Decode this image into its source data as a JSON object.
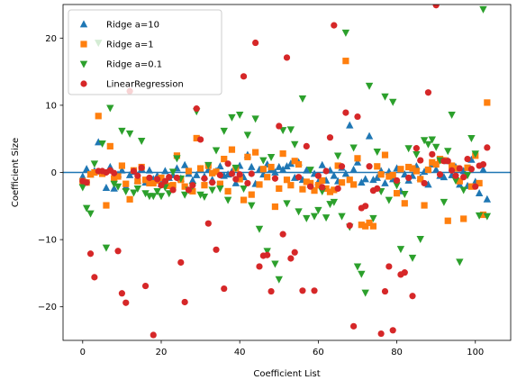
{
  "chart_data": {
    "type": "scatter",
    "title": "",
    "xlabel": "Coefficient List",
    "ylabel": "Coefficient Size",
    "xlim": [
      -5,
      109
    ],
    "ylim": [
      -25,
      25
    ],
    "xticks": [
      0,
      20,
      40,
      60,
      80,
      100
    ],
    "yticks": [
      -20,
      -10,
      0,
      10,
      20
    ],
    "hline": 0,
    "grid": false,
    "legend_position": "upper-left",
    "series": [
      {
        "name": "Ridge a=10",
        "marker": "triangle-up",
        "color": "#1f77b4",
        "x": [
          0,
          1,
          2,
          3,
          4,
          5,
          6,
          7,
          8,
          9,
          10,
          11,
          12,
          13,
          14,
          15,
          16,
          17,
          18,
          19,
          20,
          21,
          22,
          23,
          24,
          25,
          26,
          27,
          28,
          29,
          30,
          31,
          32,
          33,
          34,
          35,
          36,
          37,
          38,
          39,
          40,
          41,
          42,
          43,
          44,
          45,
          46,
          47,
          48,
          49,
          50,
          51,
          52,
          53,
          54,
          55,
          56,
          57,
          58,
          59,
          60,
          61,
          62,
          63,
          64,
          65,
          66,
          67,
          68,
          69,
          70,
          71,
          72,
          73,
          74,
          75,
          76,
          77,
          78,
          79,
          80,
          81,
          82,
          83,
          84,
          85,
          86,
          87,
          88,
          89,
          90,
          91,
          92,
          93,
          94,
          95,
          96,
          97,
          98,
          99,
          100,
          101,
          102,
          103
        ],
        "y": [
          -0.6,
          0.5,
          -0.3,
          0.2,
          4.5,
          0.1,
          -2.3,
          0.8,
          -2.4,
          -0.3,
          0.3,
          -2.1,
          -0.4,
          0.1,
          -1.2,
          0.5,
          -1.5,
          0.3,
          -1.0,
          -0.5,
          -1.7,
          0.2,
          -0.8,
          -0.4,
          0.6,
          -0.9,
          1.1,
          -0.2,
          -1.2,
          -0.4,
          0.5,
          -0.6,
          0.4,
          -1.1,
          0.2,
          0.9,
          -0.5,
          -0.3,
          0.1,
          -1.6,
          1.0,
          -0.7,
          2.6,
          0.8,
          -1.7,
          0.4,
          -0.3,
          1.2,
          0.5,
          0.0,
          0.8,
          0.4,
          0.9,
          1.3,
          -0.8,
          1.5,
          -1.1,
          0.3,
          -1.8,
          -0.2,
          -1.4,
          1.1,
          -1.2,
          0.3,
          -0.5,
          -1.3,
          0.7,
          -0.2,
          7.0,
          0.4,
          1.5,
          -1.5,
          -1.0,
          5.4,
          -1.1,
          -0.8,
          0.2,
          -1.6,
          0.1,
          -1.0,
          0.6,
          -2.8,
          -0.3,
          -1.2,
          -0.5,
          0.9,
          -0.8,
          0.1,
          -1.8,
          1.2,
          0.4,
          -0.5,
          -0.7,
          1.7,
          -0.4,
          0.8,
          -1.8,
          0.2,
          -2.0,
          1.9,
          -1.4,
          -3.1,
          0.4,
          -4.0
        ]
      },
      {
        "name": "Ridge a=1",
        "marker": "square",
        "color": "#ff7f0e",
        "x": [
          0,
          1,
          2,
          3,
          4,
          5,
          6,
          7,
          8,
          9,
          10,
          11,
          12,
          13,
          14,
          15,
          16,
          17,
          18,
          19,
          20,
          21,
          22,
          23,
          24,
          25,
          26,
          27,
          28,
          29,
          30,
          31,
          32,
          33,
          34,
          35,
          36,
          37,
          38,
          39,
          40,
          41,
          42,
          43,
          44,
          45,
          46,
          47,
          48,
          49,
          50,
          51,
          52,
          53,
          54,
          55,
          56,
          57,
          58,
          59,
          60,
          61,
          62,
          63,
          64,
          65,
          66,
          67,
          68,
          69,
          70,
          71,
          72,
          73,
          74,
          75,
          76,
          77,
          78,
          79,
          80,
          81,
          82,
          83,
          84,
          85,
          86,
          87,
          88,
          89,
          90,
          91,
          92,
          93,
          94,
          95,
          96,
          97,
          98,
          99,
          100,
          101,
          102,
          103
        ],
        "y": [
          -1.3,
          -1.5,
          -0.3,
          0.0,
          8.4,
          -0.2,
          -4.9,
          3.9,
          -0.9,
          -0.6,
          1.0,
          -1.7,
          -4.0,
          0.3,
          -1.3,
          0.8,
          -1.1,
          -1.6,
          -1.6,
          -1.2,
          -0.8,
          -1.4,
          -2.0,
          -1.9,
          2.5,
          -1.1,
          -2.1,
          0.2,
          -2.8,
          5.1,
          0.6,
          -1.9,
          1.0,
          -0.1,
          0.1,
          -1.7,
          2.0,
          -2.8,
          3.4,
          0.6,
          -1.0,
          -4.1,
          2.3,
          -3.3,
          3.0,
          -1.8,
          0.5,
          -0.7,
          0.8,
          -5.1,
          -2.4,
          2.8,
          -1.1,
          -1.9,
          1.7,
          1.2,
          -2.5,
          -1.4,
          -1.6,
          -2.7,
          -1.9,
          -1.2,
          -2.4,
          -2.9,
          -2.6,
          1.0,
          -1.5,
          16.6,
          -1.1,
          -1.8,
          2.1,
          -7.8,
          -8.0,
          -7.5,
          -8.0,
          0.9,
          -0.3,
          2.6,
          -0.6,
          -0.4,
          -3.1,
          0.5,
          -4.6,
          0.8,
          0.6,
          0.2,
          -1.0,
          -4.9,
          0.4,
          1.5,
          1.2,
          2.0,
          1.8,
          -7.2,
          1.0,
          0.6,
          -1.3,
          -6.9,
          0.7,
          -2.1,
          2.5,
          -1.6,
          -6.3,
          10.4
        ]
      },
      {
        "name": "Ridge a=0.1",
        "marker": "triangle-down",
        "color": "#2ca02c",
        "x": [
          0,
          1,
          2,
          3,
          4,
          5,
          6,
          7,
          8,
          9,
          10,
          11,
          12,
          13,
          14,
          15,
          16,
          17,
          18,
          19,
          20,
          21,
          22,
          23,
          24,
          25,
          26,
          27,
          28,
          29,
          30,
          31,
          32,
          33,
          34,
          35,
          36,
          37,
          38,
          39,
          40,
          41,
          42,
          43,
          44,
          45,
          46,
          47,
          48,
          49,
          50,
          51,
          52,
          53,
          54,
          55,
          56,
          57,
          58,
          59,
          60,
          61,
          62,
          63,
          64,
          65,
          66,
          67,
          68,
          69,
          70,
          71,
          72,
          73,
          74,
          75,
          76,
          77,
          78,
          79,
          80,
          81,
          82,
          83,
          84,
          85,
          86,
          87,
          88,
          89,
          90,
          91,
          92,
          93,
          94,
          95,
          96,
          97,
          98,
          99,
          100,
          101,
          102,
          103
        ],
        "y": [
          -2.2,
          -5.3,
          -6.1,
          1.3,
          19.3,
          4.3,
          -11.2,
          9.6,
          -1.7,
          -2.1,
          6.2,
          -2.8,
          5.8,
          -3.0,
          -2.4,
          4.7,
          -3.1,
          -3.5,
          -3.5,
          -2.8,
          -3.5,
          -2.2,
          -3.1,
          0.1,
          2.1,
          -0.9,
          -3.3,
          -2.6,
          -2.0,
          9.1,
          -3.3,
          -3.6,
          1.1,
          -2.6,
          3.3,
          -2.4,
          6.2,
          -4.1,
          8.2,
          0.7,
          8.6,
          -2.4,
          5.6,
          -4.9,
          8.0,
          -8.4,
          1.8,
          -11.7,
          2.3,
          -13.6,
          -15.9,
          6.3,
          -4.6,
          6.4,
          4.2,
          -5.8,
          11.0,
          -6.8,
          0.4,
          -6.5,
          -5.6,
          -2.8,
          -6.7,
          -4.7,
          -4.4,
          2.5,
          -6.5,
          20.8,
          -8.1,
          3.7,
          -14.0,
          -15.1,
          -17.9,
          12.9,
          -6.8,
          3.1,
          -2.8,
          11.3,
          -4.1,
          10.5,
          -1.9,
          -11.4,
          -3.2,
          3.6,
          -12.7,
          2.7,
          -9.9,
          4.8,
          4.2,
          4.9,
          3.8,
          1.8,
          -4.4,
          3.2,
          8.6,
          -1.2,
          -13.3,
          -2.6,
          -0.4,
          5.1,
          2.8,
          -6.4,
          24.3,
          -6.5
        ]
      },
      {
        "name": "LinearRegression",
        "marker": "circle",
        "color": "#d62728",
        "x": [
          0,
          1,
          2,
          3,
          4,
          5,
          6,
          7,
          8,
          9,
          10,
          11,
          12,
          13,
          14,
          15,
          16,
          17,
          18,
          19,
          20,
          21,
          22,
          23,
          24,
          25,
          26,
          27,
          28,
          29,
          30,
          31,
          32,
          33,
          34,
          35,
          36,
          37,
          38,
          39,
          40,
          41,
          42,
          43,
          44,
          45,
          46,
          47,
          48,
          49,
          50,
          51,
          52,
          53,
          54,
          55,
          56,
          57,
          58,
          59,
          60,
          61,
          62,
          63,
          64,
          65,
          66,
          67,
          68,
          69,
          70,
          71,
          72,
          73,
          74,
          75,
          76,
          77,
          78,
          79,
          80,
          81,
          82,
          83,
          84,
          85,
          86,
          87,
          88,
          89,
          90,
          91,
          92,
          93,
          94,
          95,
          96,
          97,
          98,
          99,
          100,
          101,
          102,
          103
        ],
        "y": [
          -1.3,
          -1.5,
          -12.1,
          -15.6,
          0.2,
          0.2,
          0.0,
          0.3,
          -0.1,
          -11.7,
          -18.0,
          -19.4,
          12.1,
          0.2,
          -0.5,
          0.7,
          -16.9,
          -0.8,
          -24.2,
          -1.0,
          -1.9,
          -1.3,
          -0.7,
          -2.6,
          -0.8,
          -13.4,
          -19.3,
          -2.6,
          -1.9,
          9.5,
          4.9,
          -0.9,
          -7.6,
          -1.5,
          -11.5,
          -0.4,
          -17.3,
          1.3,
          -0.2,
          -1.0,
          -0.3,
          14.3,
          -1.6,
          -0.2,
          19.3,
          -14.0,
          -12.4,
          -12.3,
          -17.7,
          -0.9,
          6.9,
          -9.2,
          17.1,
          -12.8,
          -11.9,
          -0.7,
          -17.6,
          3.9,
          -2.1,
          -17.6,
          -0.5,
          -2.2,
          0.2,
          5.2,
          21.9,
          -2.4,
          0.9,
          8.9,
          -7.9,
          -22.9,
          8.3,
          -5.3,
          -5.0,
          0.9,
          -2.7,
          -2.4,
          -24.0,
          -17.7,
          -14.0,
          -23.5,
          -1.2,
          -15.2,
          -14.9,
          -0.8,
          -18.4,
          3.6,
          1.8,
          -1.6,
          11.9,
          2.7,
          24.9,
          -0.3,
          1.7,
          1.7,
          0.3,
          -0.5,
          0.6,
          -0.7,
          2.0,
          0.5,
          -2.1,
          1.0,
          1.2,
          3.7
        ]
      }
    ]
  }
}
